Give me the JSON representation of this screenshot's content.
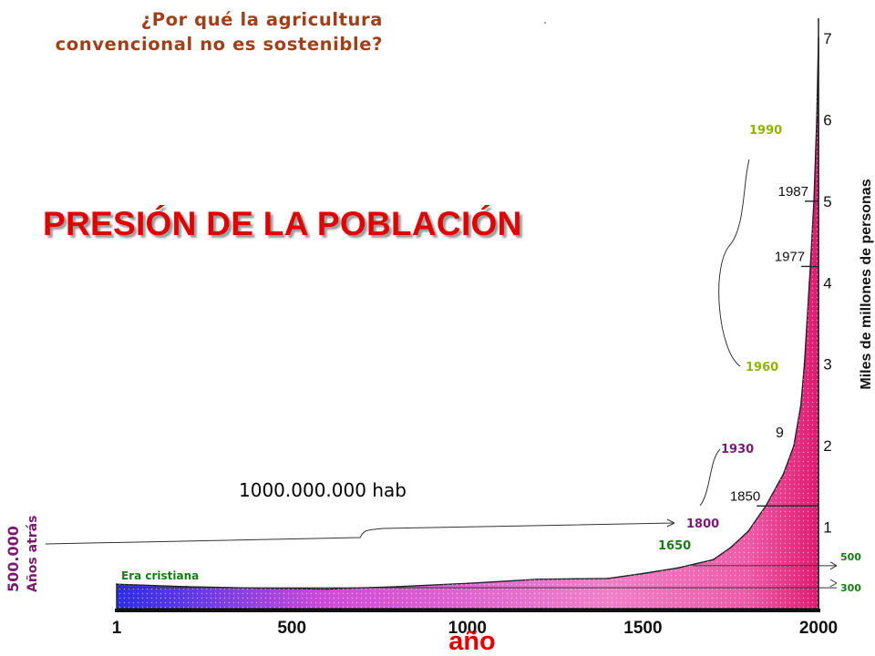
{
  "header": {
    "question_line1": "¿Por qué la agricultura",
    "question_line2": "convencional no es sostenible?",
    "headline": "PRESIÓN DE LA POBLACIÓN"
  },
  "annotations": {
    "population_label": "1000.000.000 hab",
    "years_ago_value": "500.000",
    "years_ago_text": "Años atrás",
    "era": "Era cristiana",
    "year_1990": "1990",
    "year_1960": "1960",
    "year_1930": "1930",
    "year_1800": "1800",
    "year_1650": "1650",
    "mark_500": "500",
    "mark_300": "300",
    "mark_9": "9"
  },
  "colors": {
    "question": "#a0401a",
    "headline": "#e00000",
    "green_labels": "#8db600",
    "purple_labels": "#7a1a70",
    "dark_green_labels": "#1a7a1a",
    "fill_magenta": "#e0207a",
    "fill_pink": "#f08ac4",
    "fill_blue": "#3030e0"
  },
  "chart_data": {
    "type": "area",
    "xlabel": "año",
    "ylabel": "Miles de millones de personas",
    "xlim": [
      1,
      2000
    ],
    "ylim": [
      0,
      7
    ],
    "x_ticks": [
      "1",
      "500",
      "1000",
      "1500",
      "2000"
    ],
    "y_ticks": [
      "1",
      "2",
      "3",
      "4",
      "5",
      "6",
      "7"
    ],
    "points": [
      {
        "x": 1,
        "y": 0.3
      },
      {
        "x": 200,
        "y": 0.27
      },
      {
        "x": 400,
        "y": 0.25
      },
      {
        "x": 600,
        "y": 0.24
      },
      {
        "x": 800,
        "y": 0.27
      },
      {
        "x": 1000,
        "y": 0.31
      },
      {
        "x": 1200,
        "y": 0.36
      },
      {
        "x": 1400,
        "y": 0.37
      },
      {
        "x": 1500,
        "y": 0.43
      },
      {
        "x": 1600,
        "y": 0.5
      },
      {
        "x": 1650,
        "y": 0.55
      },
      {
        "x": 1700,
        "y": 0.6
      },
      {
        "x": 1750,
        "y": 0.75
      },
      {
        "x": 1800,
        "y": 0.95
      },
      {
        "x": 1850,
        "y": 1.26
      },
      {
        "x": 1900,
        "y": 1.65
      },
      {
        "x": 1930,
        "y": 2.0
      },
      {
        "x": 1950,
        "y": 2.5
      },
      {
        "x": 1960,
        "y": 3.0
      },
      {
        "x": 1974,
        "y": 4.0
      },
      {
        "x": 1977,
        "y": 4.2
      },
      {
        "x": 1987,
        "y": 5.0
      },
      {
        "x": 1995,
        "y": 6.0
      },
      {
        "x": 2000,
        "y": 7.0
      }
    ],
    "milestones": [
      {
        "year": "1850",
        "value": 1.26
      },
      {
        "year": "1977",
        "value": 4.2
      },
      {
        "year": "1987",
        "value": 5.0
      }
    ]
  }
}
